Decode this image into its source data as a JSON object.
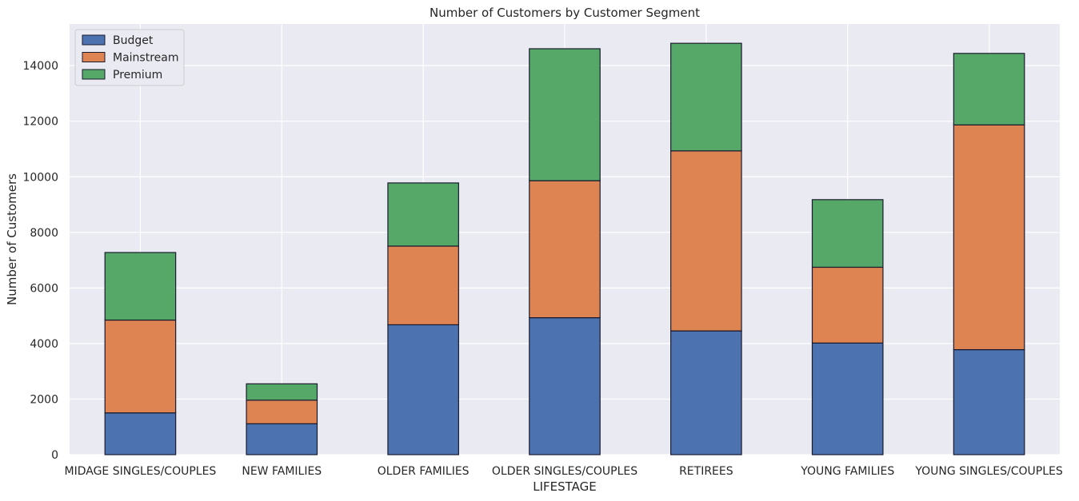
{
  "chart_data": {
    "type": "bar",
    "stacked": true,
    "title": "Number of Customers by Customer Segment",
    "xlabel": "LIFESTAGE",
    "ylabel": "Number of Customers",
    "ylim": [
      0,
      15500
    ],
    "yticks": [
      0,
      2000,
      4000,
      6000,
      8000,
      10000,
      12000,
      14000
    ],
    "grid": true,
    "legend_position": "top-left",
    "categories": [
      "MIDAGE SINGLES/COUPLES",
      "NEW FAMILIES",
      "OLDER FAMILIES",
      "OLDER SINGLES/COUPLES",
      "RETIREES",
      "YOUNG FAMILIES",
      "YOUNG SINGLES/COUPLES"
    ],
    "series": [
      {
        "name": "Budget",
        "color": "#4c72b0",
        "values": [
          1504,
          1112,
          4675,
          4929,
          4454,
          4017,
          3779
        ]
      },
      {
        "name": "Mainstream",
        "color": "#dd8452",
        "values": [
          3340,
          849,
          2831,
          4930,
          6479,
          2728,
          8088
        ]
      },
      {
        "name": "Premium",
        "color": "#55a868",
        "values": [
          2431,
          588,
          2273,
          4750,
          3872,
          2433,
          2574
        ]
      }
    ],
    "colors": {
      "plot_background": "#eaeaf2",
      "grid": "#ffffff",
      "bar_edge": "#1a1a2e"
    }
  }
}
